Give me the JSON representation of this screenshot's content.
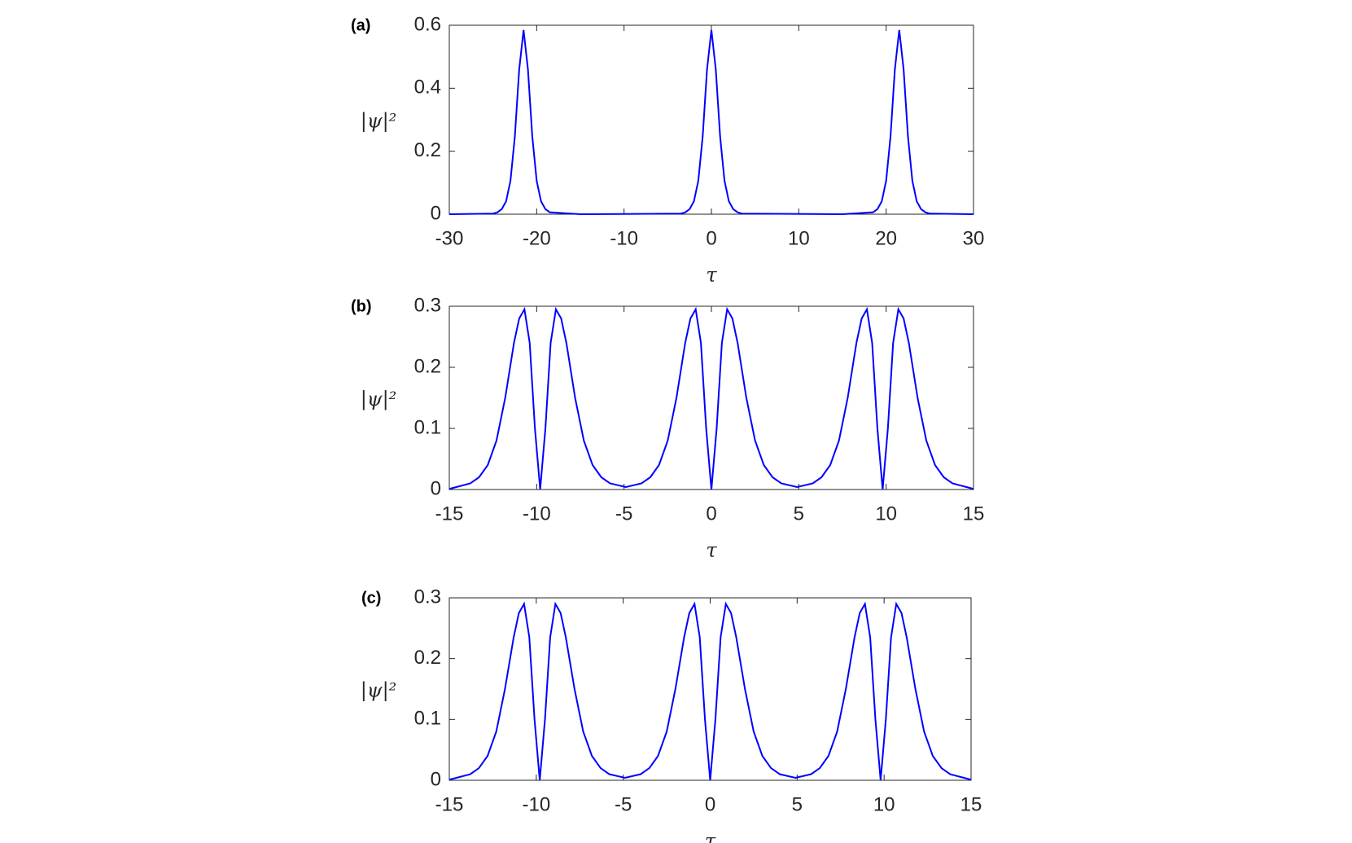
{
  "chart_data": [
    {
      "type": "line",
      "panel_label": "(a)",
      "xlabel": "τ",
      "ylabel": "|ψ|²",
      "xlim": [
        -30,
        30
      ],
      "ylim": [
        0,
        0.6
      ],
      "xticks": [
        -30,
        -20,
        -10,
        0,
        10,
        20,
        30
      ],
      "yticks": [
        0,
        0.2,
        0.4,
        0.6
      ],
      "x": [
        -30,
        -25,
        -24.5,
        -24,
        -23.5,
        -23,
        -22.5,
        -22,
        -21.5,
        -21,
        -20.5,
        -20,
        -19.5,
        -19,
        -18.5,
        -15,
        -3.5,
        -3,
        -2.5,
        -2,
        -1.5,
        -1,
        -0.5,
        0,
        0.5,
        1,
        1.5,
        2,
        2.5,
        3,
        3.5,
        15,
        18.5,
        19,
        19.5,
        20,
        20.5,
        21,
        21.5,
        22,
        22.5,
        23,
        23.5,
        24,
        24.5,
        25,
        30
      ],
      "series": [
        {
          "color": "#0000ff",
          "values": [
            0,
            0.002,
            0.006,
            0.016,
            0.041,
            0.106,
            0.246,
            0.46,
            0.585,
            0.46,
            0.246,
            0.106,
            0.041,
            0.016,
            0.006,
            0,
            0.002,
            0.006,
            0.016,
            0.041,
            0.106,
            0.246,
            0.46,
            0.585,
            0.46,
            0.246,
            0.106,
            0.041,
            0.016,
            0.006,
            0.002,
            0,
            0.006,
            0.016,
            0.041,
            0.106,
            0.246,
            0.46,
            0.585,
            0.46,
            0.246,
            0.106,
            0.041,
            0.016,
            0.006,
            0.002,
            0
          ]
        }
      ]
    },
    {
      "type": "line",
      "panel_label": "(b)",
      "xlabel": "τ",
      "ylabel": "|ψ|²",
      "xlim": [
        -15,
        15
      ],
      "ylim": [
        0,
        0.3
      ],
      "xticks": [
        -15,
        -10,
        -5,
        0,
        5,
        10,
        15
      ],
      "yticks": [
        0,
        0.1,
        0.2,
        0.3
      ],
      "x": [
        -15,
        -13.8,
        -13.3,
        -12.8,
        -12.3,
        -11.8,
        -11.3,
        -11,
        -10.7,
        -10.4,
        -10.1,
        -9.8,
        -9.5,
        -9.2,
        -8.9,
        -8.6,
        -8.3,
        -7.8,
        -7.3,
        -6.8,
        -6.3,
        -5.8,
        -4.9,
        -4,
        -3.5,
        -3,
        -2.5,
        -2,
        -1.5,
        -1.2,
        -0.9,
        -0.6,
        -0.3,
        0,
        0.3,
        0.6,
        0.9,
        1.2,
        1.5,
        2,
        2.5,
        3,
        3.5,
        4,
        4.9,
        5.8,
        6.3,
        6.8,
        7.3,
        7.8,
        8.3,
        8.6,
        8.9,
        9.2,
        9.5,
        9.8,
        10.1,
        10.4,
        10.7,
        11,
        11.3,
        11.8,
        12.3,
        12.8,
        13.3,
        13.8,
        15
      ],
      "series": [
        {
          "color": "#0000ff",
          "values": [
            0.001,
            0.01,
            0.02,
            0.04,
            0.08,
            0.15,
            0.24,
            0.28,
            0.295,
            0.24,
            0.1,
            0,
            0.1,
            0.24,
            0.295,
            0.28,
            0.24,
            0.15,
            0.08,
            0.04,
            0.02,
            0.01,
            0.004,
            0.01,
            0.02,
            0.04,
            0.08,
            0.15,
            0.24,
            0.28,
            0.295,
            0.24,
            0.1,
            0,
            0.1,
            0.24,
            0.295,
            0.28,
            0.24,
            0.15,
            0.08,
            0.04,
            0.02,
            0.01,
            0.004,
            0.01,
            0.02,
            0.04,
            0.08,
            0.15,
            0.24,
            0.28,
            0.295,
            0.24,
            0.1,
            0,
            0.1,
            0.24,
            0.295,
            0.28,
            0.24,
            0.15,
            0.08,
            0.04,
            0.02,
            0.01,
            0.001
          ]
        }
      ]
    },
    {
      "type": "line",
      "panel_label": "(c)",
      "xlabel": "τ",
      "ylabel": "|ψ|²",
      "xlim": [
        -15,
        15
      ],
      "ylim": [
        0,
        0.3
      ],
      "xticks": [
        -15,
        -10,
        -5,
        0,
        5,
        10,
        15
      ],
      "yticks": [
        0,
        0.1,
        0.2,
        0.3
      ],
      "x": [
        -15,
        -13.8,
        -13.3,
        -12.8,
        -12.3,
        -11.8,
        -11.3,
        -11,
        -10.7,
        -10.4,
        -10.1,
        -9.8,
        -9.5,
        -9.2,
        -8.9,
        -8.6,
        -8.3,
        -7.8,
        -7.3,
        -6.8,
        -6.3,
        -5.8,
        -4.9,
        -4,
        -3.5,
        -3,
        -2.5,
        -2,
        -1.5,
        -1.2,
        -0.9,
        -0.6,
        -0.3,
        0,
        0.3,
        0.6,
        0.9,
        1.2,
        1.5,
        2,
        2.5,
        3,
        3.5,
        4,
        4.9,
        5.8,
        6.3,
        6.8,
        7.3,
        7.8,
        8.3,
        8.6,
        8.9,
        9.2,
        9.5,
        9.8,
        10.1,
        10.4,
        10.7,
        11,
        11.3,
        11.8,
        12.3,
        12.8,
        13.3,
        13.8,
        15
      ],
      "series": [
        {
          "color": "#0000ff",
          "values": [
            0.001,
            0.01,
            0.02,
            0.04,
            0.08,
            0.15,
            0.235,
            0.275,
            0.29,
            0.235,
            0.1,
            0,
            0.1,
            0.235,
            0.29,
            0.275,
            0.235,
            0.15,
            0.08,
            0.04,
            0.02,
            0.01,
            0.004,
            0.01,
            0.02,
            0.04,
            0.08,
            0.15,
            0.235,
            0.275,
            0.29,
            0.235,
            0.1,
            0,
            0.1,
            0.235,
            0.29,
            0.275,
            0.235,
            0.15,
            0.08,
            0.04,
            0.02,
            0.01,
            0.004,
            0.01,
            0.02,
            0.04,
            0.08,
            0.15,
            0.235,
            0.275,
            0.29,
            0.235,
            0.1,
            0,
            0.1,
            0.235,
            0.29,
            0.275,
            0.235,
            0.15,
            0.08,
            0.04,
            0.02,
            0.01,
            0.001
          ]
        }
      ]
    }
  ]
}
